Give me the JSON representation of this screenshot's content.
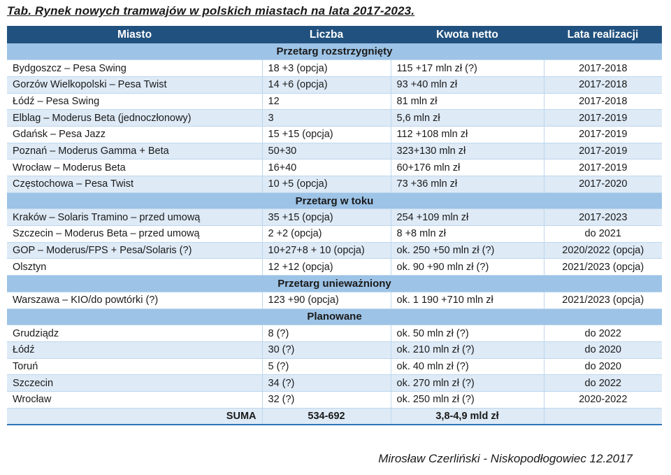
{
  "colors": {
    "header_bg": "#21517E",
    "header_text": "#FFFFFF",
    "section_bg": "#9DC3E6",
    "stripe_bg": "#DEEAF6",
    "grid_line": "#BDD7EE",
    "bottom_border": "#2E74B5",
    "text": "#1A1A1A"
  },
  "chart_data": {
    "type": "table",
    "title": "Tab. Rynek nowych tramwajów w polskich miastach na lata 2017-2023.",
    "columns": [
      "Miasto",
      "Liczba",
      "Kwota netto",
      "Lata realizacji"
    ],
    "sections": [
      {
        "label": "Przetarg rozstrzygnięty",
        "rows": [
          [
            "Bydgoszcz – Pesa Swing",
            "18 +3 (opcja)",
            "115 +17 mln zł (?)",
            "2017-2018"
          ],
          [
            "Gorzów Wielkopolski – Pesa Twist",
            "14 +6 (opcja)",
            "93 +40 mln zł",
            "2017-2018"
          ],
          [
            "Łódź – Pesa Swing",
            "12",
            "81 mln zł",
            "2017-2018"
          ],
          [
            "Elblag – Moderus Beta (jednoczłonowy)",
            "3",
            "5,6 mln zł",
            "2017-2019"
          ],
          [
            "Gdańsk – Pesa Jazz",
            "15 +15 (opcja)",
            "112 +108 mln zł",
            "2017-2019"
          ],
          [
            "Poznań – Moderus Gamma + Beta",
            "50+30",
            "323+130 mln zł",
            "2017-2019"
          ],
          [
            "Wrocław – Moderus Beta",
            "16+40",
            "60+176 mln zł",
            "2017-2019"
          ],
          [
            "Częstochowa – Pesa Twist",
            "10 +5 (opcja)",
            "73 +36 mln zł",
            "2017-2020"
          ]
        ]
      },
      {
        "label": "Przetarg w toku",
        "rows": [
          [
            "Kraków – Solaris Tramino – przed umową",
            "35 +15 (opcja)",
            "254 +109 mln zł",
            "2017-2023"
          ],
          [
            "Szczecin – Moderus Beta – przed umową",
            "2 +2 (opcja)",
            "8 +8 mln zł",
            "do 2021"
          ],
          [
            "GOP – Moderus/FPS + Pesa/Solaris (?)",
            "10+27+8 + 10 (opcja)",
            "ok. 250 +50 mln zł (?)",
            "2020/2022 (opcja)"
          ],
          [
            "Olsztyn",
            "12 +12 (opcja)",
            "ok. 90 +90 mln zł (?)",
            "2021/2023 (opcja)"
          ]
        ]
      },
      {
        "label": "Przetarg unieważniony",
        "rows": [
          [
            "Warszawa – KIO/do powtórki (?)",
            "123 +90 (opcja)",
            "ok. 1 190 +710 mln zł",
            "2021/2023 (opcja)"
          ]
        ]
      },
      {
        "label": "Planowane",
        "rows": [
          [
            "Grudziądz",
            "8 (?)",
            "ok. 50 mln zł (?)",
            "do 2022"
          ],
          [
            "Łódź",
            "30 (?)",
            "ok. 210 mln zł (?)",
            "do 2020"
          ],
          [
            "Toruń",
            "5 (?)",
            "ok. 40 mln zł (?)",
            "do 2020"
          ],
          [
            "Szczecin",
            "34 (?)",
            "ok. 270 mln zł (?)",
            "do 2022"
          ],
          [
            "Wrocław",
            "32 (?)",
            "ok. 250 mln zł (?)",
            "2020-2022"
          ]
        ]
      }
    ],
    "sum_row": [
      "SUMA",
      "534-692",
      "3,8-4,9 mld zł",
      ""
    ],
    "credit": "Mirosław Czerliński - Niskopodłogowiec 12.2017"
  }
}
